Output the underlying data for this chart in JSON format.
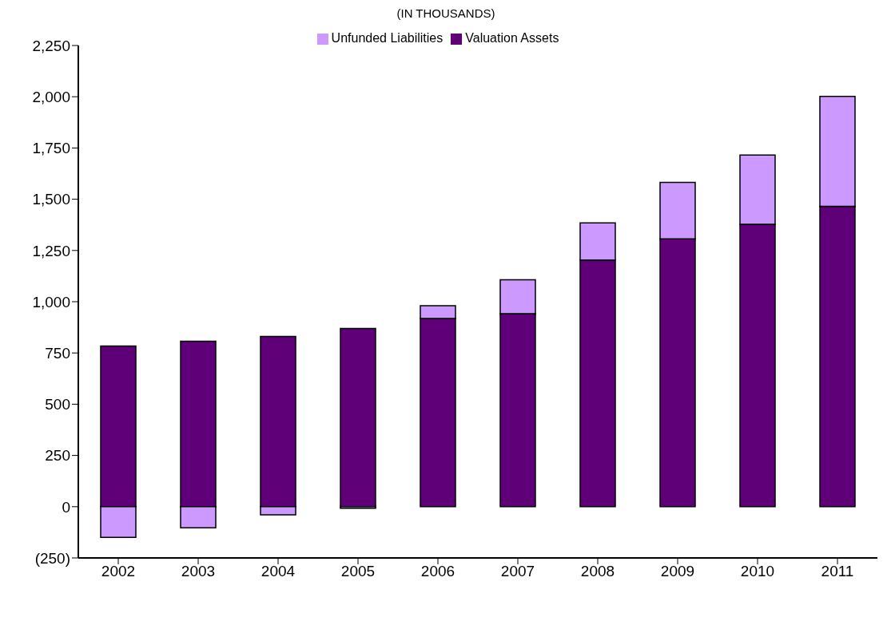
{
  "chart_data": {
    "type": "bar",
    "title": "(IN THOUSANDS)",
    "categories": [
      "2002",
      "2003",
      "2004",
      "2005",
      "2006",
      "2007",
      "2008",
      "2009",
      "2010",
      "2011"
    ],
    "series": [
      {
        "name": "Valuation Assets",
        "color": "#5f0078",
        "values": [
          784,
          807,
          831,
          870,
          918,
          942,
          1203,
          1307,
          1378,
          1465
        ]
      },
      {
        "name": "Unfunded Liabilities",
        "color": "#cc99ff",
        "values": [
          -150,
          -103,
          -40,
          -8,
          63,
          165,
          182,
          275,
          338,
          537
        ]
      }
    ],
    "stacked": true,
    "ylim": [
      -250,
      2250
    ],
    "yticks": [
      {
        "value": -250,
        "label": "(250)"
      },
      0,
      250,
      500,
      750,
      {
        "value": 1000,
        "label": "1,000"
      },
      {
        "value": 1250,
        "label": "1,250"
      },
      {
        "value": 1500,
        "label": "1,500"
      },
      {
        "value": 1750,
        "label": "1,750"
      },
      {
        "value": 2000,
        "label": "2,000"
      },
      {
        "value": 2250,
        "label": "2,250"
      }
    ],
    "grid": false,
    "legend": "top"
  }
}
